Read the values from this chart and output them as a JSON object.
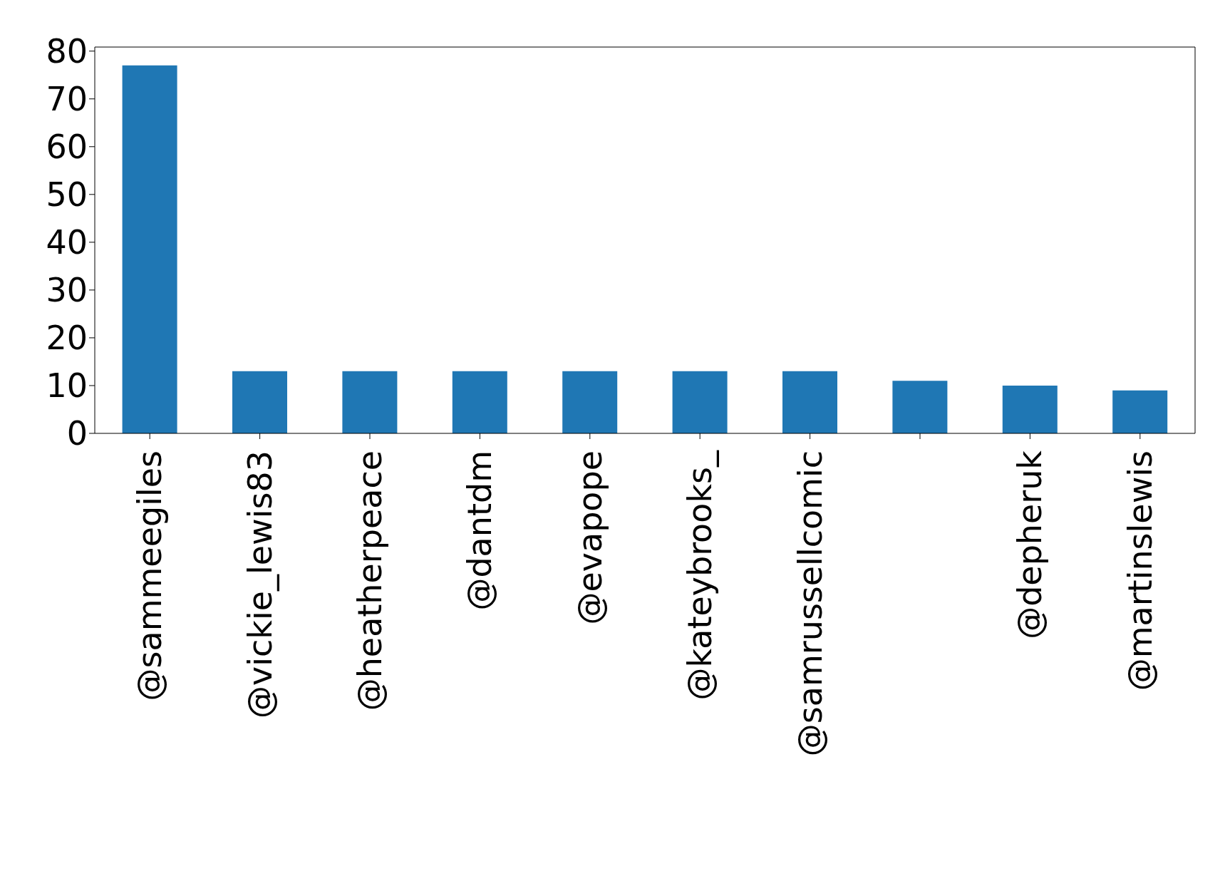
{
  "chart_data": {
    "type": "bar",
    "categories": [
      "@sammeegiles",
      "@vickie_lewis83",
      "@heatherpeace",
      "@dantdm",
      "@evapope",
      "@kateybrooks_",
      "@samrussellcomic",
      null,
      "@depheruk",
      "@martinslewis"
    ],
    "values": [
      77,
      13,
      13,
      13,
      13,
      13,
      13,
      11,
      10,
      9
    ],
    "color": "#1f77b4",
    "ylim": [
      0,
      80.85
    ],
    "yticks": [
      0,
      10,
      20,
      30,
      40,
      50,
      60,
      70,
      80
    ],
    "grid": false,
    "legend": false
  }
}
